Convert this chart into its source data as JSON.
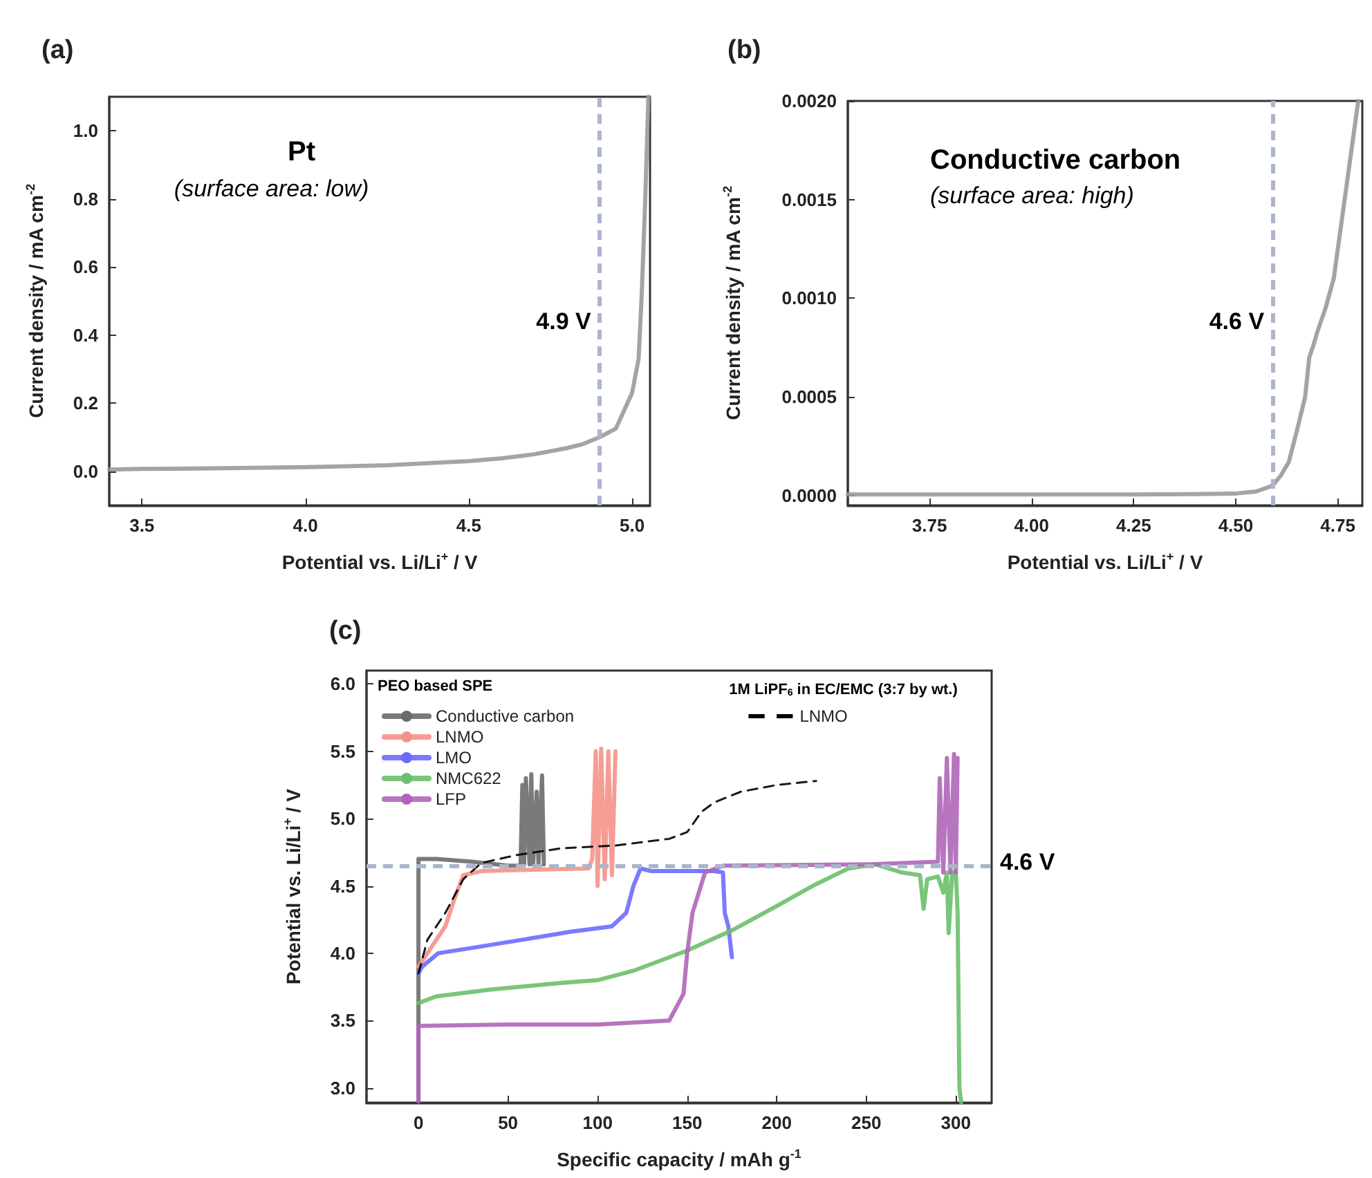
{
  "chart_data": [
    {
      "type": "line",
      "title": "(a)",
      "xlabel": "Potential vs. Li/Li$^{+}$ / V",
      "ylabel": "Current density / mA cm$^{-2}$",
      "annotations": [
        "Pt",
        "(surface area: low)"
      ],
      "xlim": [
        3.4,
        5.055
      ],
      "xticks": [
        3.5,
        {
          "value": 4,
          "label": "4.0"
        },
        4.5,
        {
          "value": 5,
          "label": "5.0"
        }
      ],
      "ylim": [
        -0.1,
        1.1
      ],
      "yticks": [
        {
          "value": 0,
          "label": "0.0"
        },
        0.2,
        0.4,
        0.6,
        0.8,
        {
          "value": 1,
          "label": "1.0"
        }
      ],
      "grid": false,
      "legend": false,
      "marker": "none",
      "line_style": "solid",
      "ref_lines": [
        {
          "axis": "x",
          "value": 4.9,
          "label": "4.9 V",
          "color": "#aab6cc",
          "line_style": "dashed"
        }
      ],
      "series": [
        {
          "color": "#9a9a9a",
          "x": [
            3.4,
            3.5,
            3.75,
            4.0,
            4.25,
            4.5,
            4.6,
            4.7,
            4.8,
            4.85,
            4.9,
            4.95,
            5.0,
            5.02,
            5.03,
            5.04,
            5.05
          ],
          "values": [
            0.005,
            0.007,
            0.009,
            0.012,
            0.018,
            0.03,
            0.038,
            0.05,
            0.068,
            0.08,
            0.1,
            0.125,
            0.23,
            0.33,
            0.53,
            0.79,
            1.1
          ]
        }
      ]
    },
    {
      "type": "line",
      "title": "(b)",
      "xlabel": "Potential vs. Li/Li$^{+}$ / V",
      "ylabel": "Current density / mA cm$^{-2}$",
      "annotations": [
        "Conductive carbon",
        "(surface area: high)"
      ],
      "xlim": [
        3.55,
        4.81
      ],
      "xticks": [
        3.75,
        {
          "value": 4,
          "label": "4.00"
        },
        4.25,
        {
          "value": 4.5,
          "label": "4.50"
        },
        4.75
      ],
      "ylim": [
        -5e-05,
        0.002
      ],
      "yticks": [
        {
          "value": 0,
          "label": "0.0000"
        },
        {
          "value": 0.0005,
          "label": "0.0005"
        },
        {
          "value": 0.001,
          "label": "0.0010"
        },
        {
          "value": 0.0015,
          "label": "0.0015"
        },
        {
          "value": 0.002,
          "label": "0.0020"
        }
      ],
      "grid": false,
      "legend": false,
      "marker": "none",
      "line_style": "solid",
      "ref_lines": [
        {
          "axis": "x",
          "value": 4.59,
          "label": "4.6 V",
          "color": "#aab6cc",
          "line_style": "dashed"
        }
      ],
      "series": [
        {
          "color": "#9a9a9a",
          "x": [
            3.55,
            3.75,
            4.0,
            4.25,
            4.4,
            4.5,
            4.55,
            4.59,
            4.61,
            4.63,
            4.65,
            4.67,
            4.68,
            4.69,
            4.7,
            4.72,
            4.74,
            4.76,
            4.78,
            4.8
          ],
          "values": [
            5e-06,
            5e-06,
            5e-06,
            5e-06,
            7e-06,
            1e-05,
            2e-05,
            5e-05,
            0.0001,
            0.00017,
            0.00033,
            0.0005,
            0.0007,
            0.00076,
            0.00083,
            0.00095,
            0.0011,
            0.0014,
            0.0017,
            0.002
          ]
        }
      ]
    },
    {
      "type": "line",
      "title": "(c)",
      "xlabel": "Specific capacity / mAh g$^{-1}$",
      "ylabel": "Potential vs. Li/Li$^{+}$ / V",
      "legend_title": "PEO based SPE",
      "annotations": [
        "1M LiPF$_{6}$ in EC/EMC (3:7 by wt.)"
      ],
      "xlim": [
        -29,
        320
      ],
      "xticks": [
        0,
        50,
        100,
        150,
        200,
        250,
        300
      ],
      "ylim": [
        2.89,
        6.1
      ],
      "yticks": [
        {
          "value": 3,
          "label": "3.0"
        },
        3.5,
        {
          "value": 4,
          "label": "4.0"
        },
        4.5,
        {
          "value": 5,
          "label": "5.0"
        },
        5.5,
        {
          "value": 6,
          "label": "6.0"
        }
      ],
      "grid": false,
      "legend": "top left",
      "marker": "none",
      "line_style": "solid",
      "ref_lines": [
        {
          "axis": "y",
          "value": 4.65,
          "label": "4.6 V",
          "color": "#aab6cc",
          "line_style": "dashed"
        }
      ],
      "series": [
        {
          "name": "Conductive carbon",
          "color": "#6b6b6b",
          "x": [
            0,
            0,
            10,
            30,
            50,
            57,
            58,
            59,
            60,
            62,
            63,
            64,
            66,
            67,
            69,
            70
          ],
          "values": [
            2.9,
            4.7,
            4.7,
            4.68,
            4.65,
            4.65,
            5.25,
            4.66,
            5.3,
            4.66,
            5.33,
            4.66,
            5.2,
            4.65,
            5.32,
            4.66
          ]
        },
        {
          "name": "LNMO",
          "color": "#f4928a",
          "x": [
            0,
            5,
            15,
            20,
            25,
            35,
            60,
            95,
            97,
            99,
            100,
            102,
            104,
            106,
            108,
            110
          ],
          "values": [
            3.9,
            4.0,
            4.2,
            4.4,
            4.58,
            4.61,
            4.62,
            4.63,
            4.7,
            5.5,
            4.5,
            5.52,
            4.55,
            5.5,
            4.58,
            5.5
          ]
        },
        {
          "name": "LMO",
          "color": "#6b6bff",
          "x": [
            0,
            2,
            11,
            30,
            58,
            85,
            108,
            116,
            120,
            124,
            130,
            165,
            170,
            171,
            173,
            175
          ],
          "values": [
            3.85,
            3.9,
            4.0,
            4.04,
            4.1,
            4.16,
            4.2,
            4.3,
            4.5,
            4.63,
            4.61,
            4.61,
            4.6,
            4.3,
            4.2,
            3.97
          ]
        },
        {
          "name": "NMC622",
          "color": "#6cbf6c",
          "x": [
            0,
            10,
            40,
            80,
            100,
            120,
            150,
            175,
            200,
            220,
            240,
            255,
            270,
            280,
            282,
            284,
            290,
            293,
            295,
            296,
            298,
            300,
            301,
            302,
            303
          ],
          "values": [
            3.63,
            3.68,
            3.73,
            3.78,
            3.8,
            3.87,
            4.02,
            4.17,
            4.35,
            4.5,
            4.63,
            4.66,
            4.6,
            4.58,
            4.33,
            4.55,
            4.57,
            4.45,
            4.6,
            4.15,
            4.6,
            4.6,
            4.3,
            3.0,
            2.89
          ]
        },
        {
          "name": "LFP",
          "color": "#b066b8",
          "x": [
            0,
            0,
            50,
            100,
            140,
            148,
            150,
            153,
            160,
            170,
            250,
            290,
            291,
            293,
            295,
            297,
            299,
            300,
            301
          ],
          "values": [
            2.9,
            3.46,
            3.47,
            3.47,
            3.5,
            3.7,
            4.0,
            4.3,
            4.6,
            4.65,
            4.66,
            4.68,
            5.3,
            4.6,
            5.45,
            4.6,
            5.48,
            4.6,
            5.45
          ]
        },
        {
          "name": "LNMO",
          "color": "#000000",
          "line_style": "dashed",
          "x": [
            0,
            5,
            15,
            25,
            35,
            55,
            80,
            110,
            140,
            150,
            158,
            165,
            180,
            200,
            222
          ],
          "values": [
            3.85,
            4.1,
            4.3,
            4.55,
            4.67,
            4.73,
            4.78,
            4.8,
            4.85,
            4.9,
            5.05,
            5.12,
            5.2,
            5.25,
            5.28
          ]
        }
      ]
    }
  ]
}
